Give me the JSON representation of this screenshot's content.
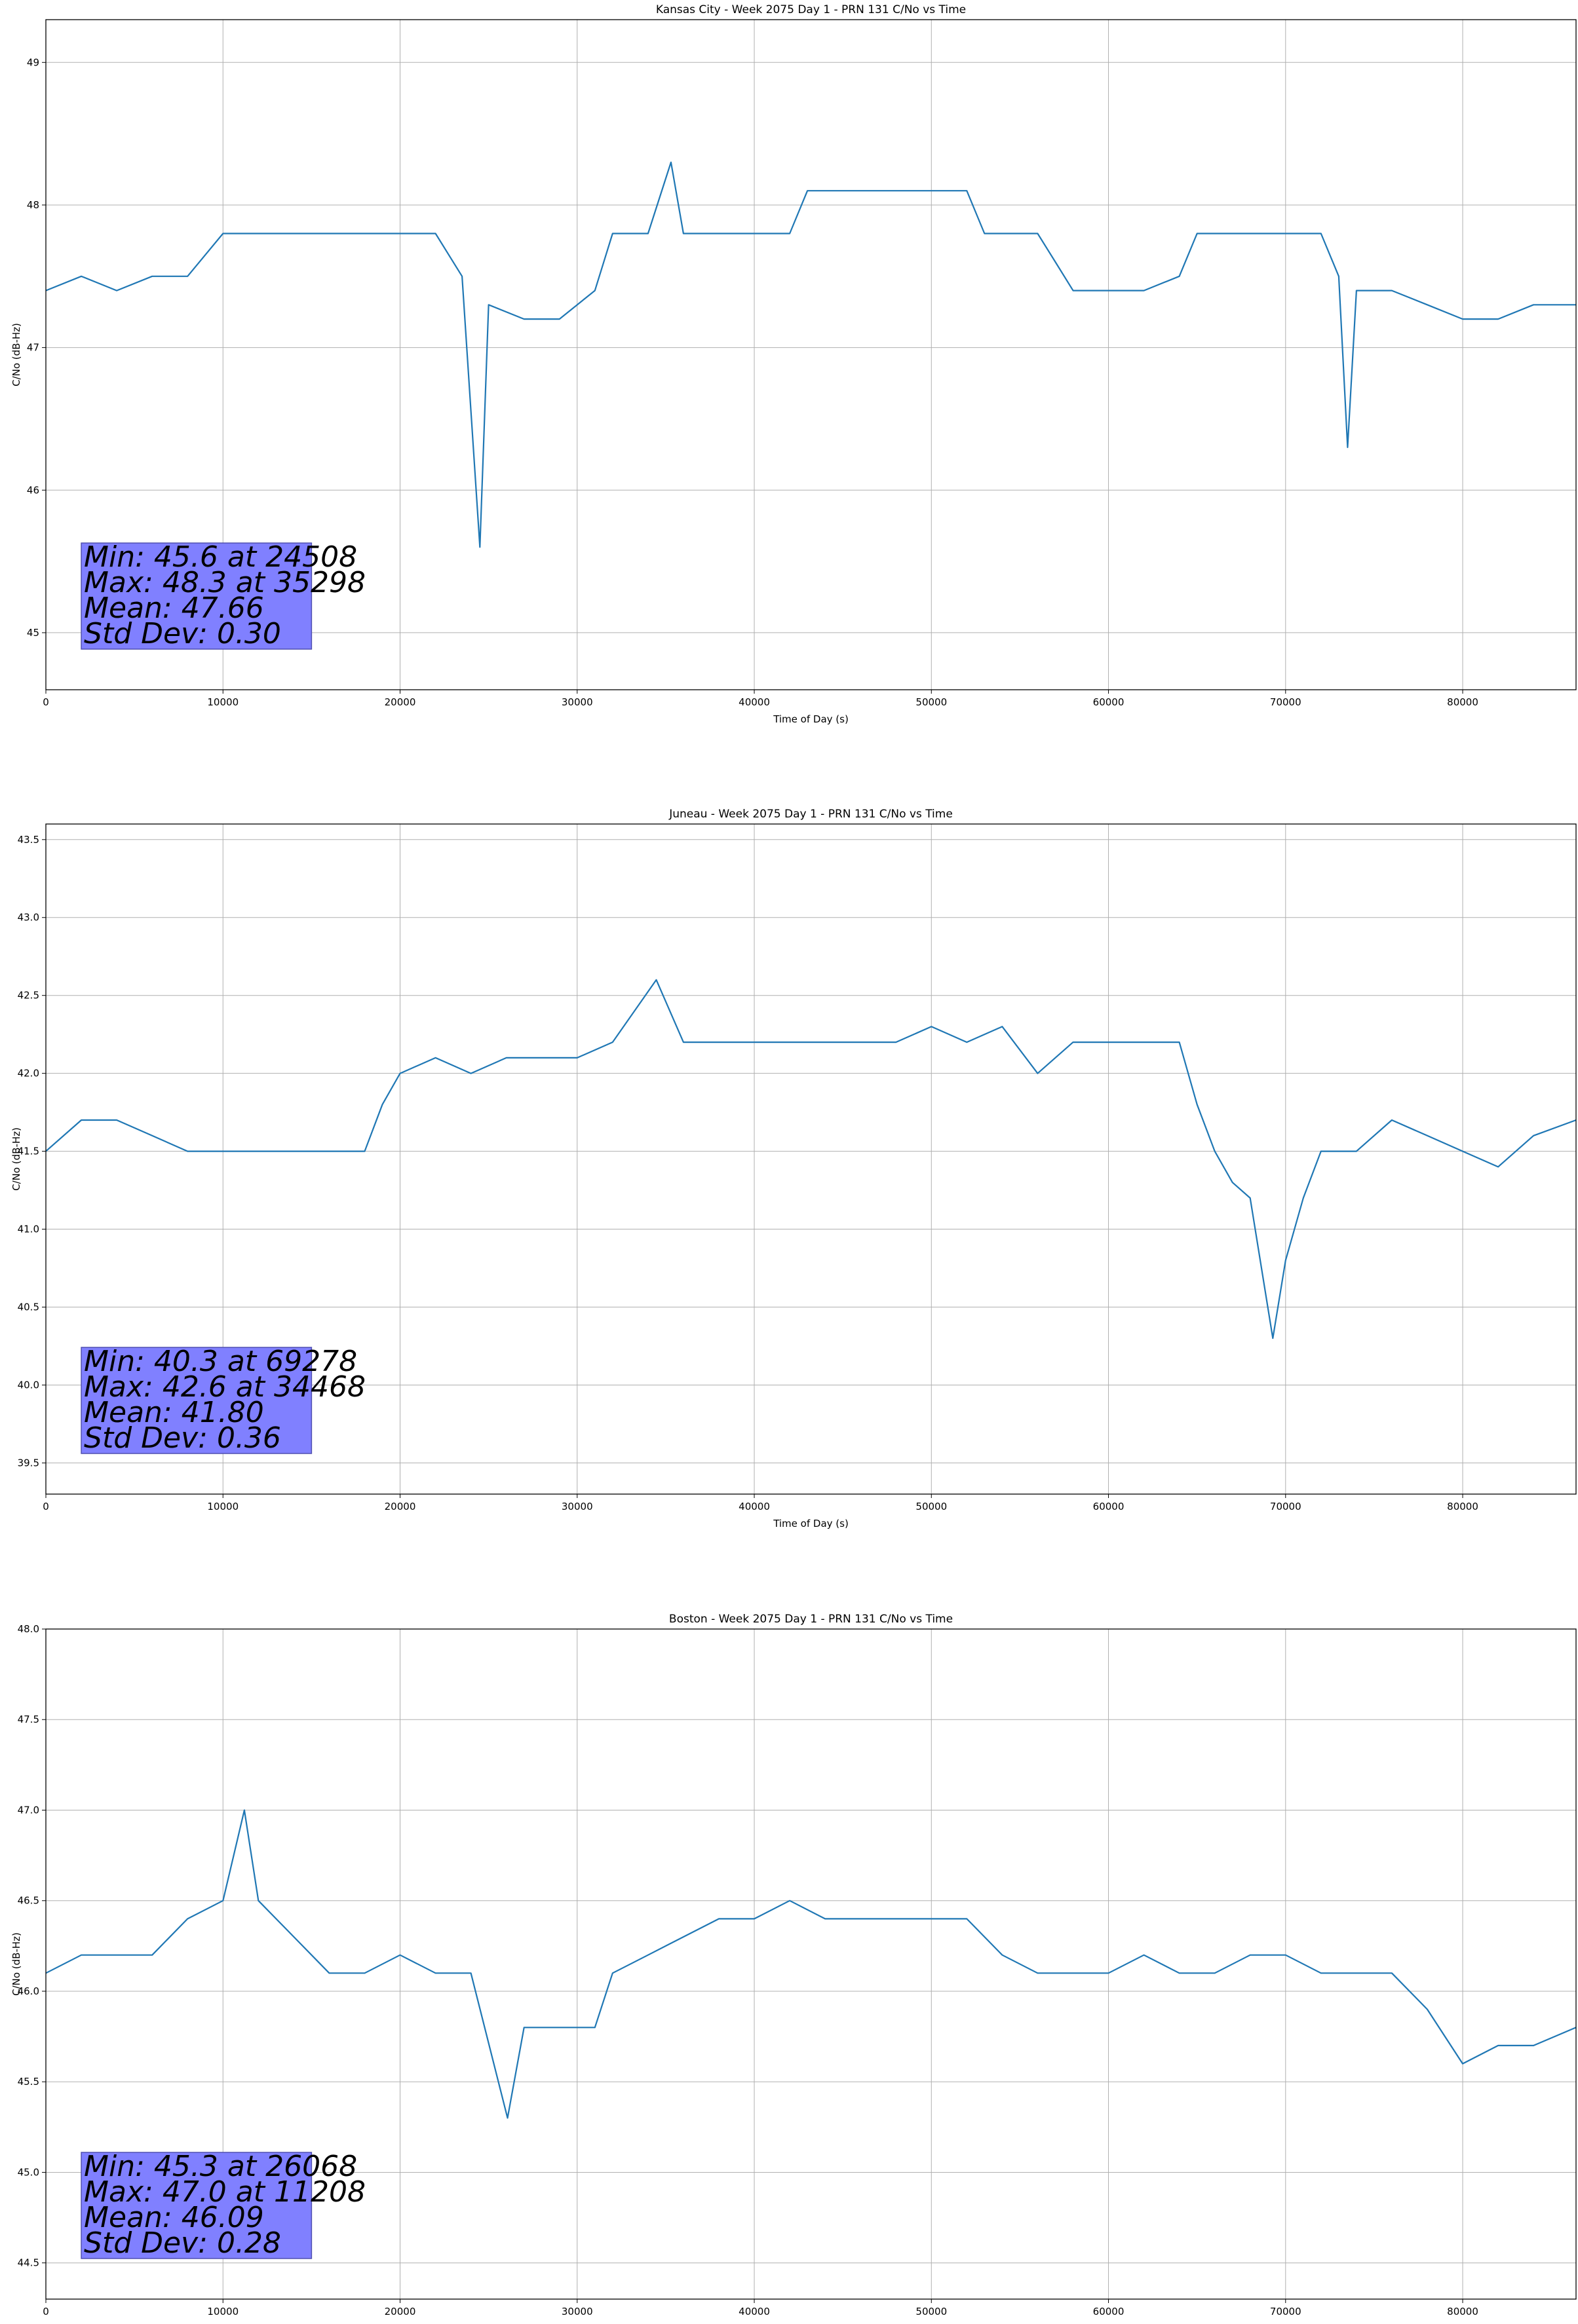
{
  "colors": {
    "series": "#1f77b4",
    "grid": "#b0b0b0",
    "stats_box_fill": "#8080ff",
    "stats_box_edge": "#5050b0"
  },
  "chart_data": [
    {
      "type": "line",
      "title": "Kansas City - Week 2075 Day 1 - PRN 131 C/No vs Time",
      "xlabel": "Time of Day (s)",
      "ylabel": "C/No (dB-Hz)",
      "xlim": [
        0,
        86400
      ],
      "ylim": [
        44.6,
        49.3
      ],
      "xticks": [
        0,
        10000,
        20000,
        30000,
        40000,
        50000,
        60000,
        70000,
        80000
      ],
      "yticks": [
        45,
        46,
        47,
        48,
        49
      ],
      "grid": true,
      "series": [
        {
          "x": [
            0,
            2000,
            4000,
            6000,
            8000,
            10000,
            12000,
            14000,
            16000,
            18000,
            20000,
            22000,
            23500,
            24508,
            25000,
            27000,
            29000,
            31000,
            32000,
            34000,
            35298,
            36000,
            38000,
            40000,
            42000,
            43000,
            44000,
            46000,
            48000,
            50000,
            52000,
            53000,
            54000,
            56000,
            57000,
            58000,
            60000,
            62000,
            64000,
            65000,
            66000,
            68000,
            70000,
            72000,
            73000,
            73500,
            74000,
            76000,
            78000,
            80000,
            82000,
            84000,
            86400
          ],
          "y": [
            47.4,
            47.5,
            47.4,
            47.5,
            47.5,
            47.8,
            47.8,
            47.8,
            47.8,
            47.8,
            47.8,
            47.8,
            47.5,
            45.6,
            47.3,
            47.2,
            47.2,
            47.4,
            47.8,
            47.8,
            48.3,
            47.8,
            47.8,
            47.8,
            47.8,
            48.1,
            48.1,
            48.1,
            48.1,
            48.1,
            48.1,
            47.8,
            47.8,
            47.8,
            47.6,
            47.4,
            47.4,
            47.4,
            47.5,
            47.8,
            47.8,
            47.8,
            47.8,
            47.8,
            47.5,
            46.3,
            47.4,
            47.4,
            47.3,
            47.2,
            47.2,
            47.3,
            47.3
          ]
        }
      ],
      "stats": [
        "Min: 45.6 at 24508",
        "Max: 48.3 at 35298",
        "Mean: 47.66",
        "Std Dev: 0.30"
      ]
    },
    {
      "type": "line",
      "title": "Juneau - Week 2075 Day 1 - PRN 131 C/No vs Time",
      "xlabel": "Time of Day (s)",
      "ylabel": "C/No (dB-Hz)",
      "xlim": [
        0,
        86400
      ],
      "ylim": [
        39.3,
        43.6
      ],
      "xticks": [
        0,
        10000,
        20000,
        30000,
        40000,
        50000,
        60000,
        70000,
        80000
      ],
      "yticks": [
        39.5,
        40.0,
        40.5,
        41.0,
        41.5,
        42.0,
        42.5,
        43.0,
        43.5
      ],
      "grid": true,
      "series": [
        {
          "x": [
            0,
            2000,
            4000,
            6000,
            8000,
            10000,
            12000,
            14000,
            16000,
            18000,
            19000,
            20000,
            22000,
            24000,
            26000,
            28000,
            30000,
            32000,
            34468,
            36000,
            38000,
            40000,
            42000,
            44000,
            46000,
            48000,
            50000,
            52000,
            54000,
            56000,
            58000,
            60000,
            62000,
            64000,
            65000,
            66000,
            67000,
            68000,
            69278,
            70000,
            71000,
            72000,
            74000,
            76000,
            78000,
            80000,
            82000,
            84000,
            86400
          ],
          "y": [
            41.5,
            41.7,
            41.7,
            41.6,
            41.5,
            41.5,
            41.5,
            41.5,
            41.5,
            41.5,
            41.8,
            42.0,
            42.1,
            42.0,
            42.1,
            42.1,
            42.1,
            42.2,
            42.6,
            42.2,
            42.2,
            42.2,
            42.2,
            42.2,
            42.2,
            42.2,
            42.3,
            42.2,
            42.3,
            42.0,
            42.2,
            42.2,
            42.2,
            42.2,
            41.8,
            41.5,
            41.3,
            41.2,
            40.3,
            40.8,
            41.2,
            41.5,
            41.5,
            41.7,
            41.6,
            41.5,
            41.4,
            41.6,
            41.7
          ]
        }
      ],
      "stats": [
        "Min: 40.3 at 69278",
        "Max: 42.6 at 34468",
        "Mean: 41.80",
        "Std Dev: 0.36"
      ]
    },
    {
      "type": "line",
      "title": "Boston - Week 2075 Day 1 - PRN 131 C/No vs Time",
      "xlabel": "Time of Day (s)",
      "ylabel": "C/No (dB-Hz)",
      "xlim": [
        0,
        86400
      ],
      "ylim": [
        44.3,
        48.0
      ],
      "xticks": [
        0,
        10000,
        20000,
        30000,
        40000,
        50000,
        60000,
        70000,
        80000
      ],
      "yticks": [
        44.5,
        45.0,
        45.5,
        46.0,
        46.5,
        47.0,
        47.5,
        48.0
      ],
      "grid": true,
      "series": [
        {
          "x": [
            0,
            2000,
            4000,
            6000,
            8000,
            10000,
            11208,
            12000,
            14000,
            16000,
            18000,
            20000,
            22000,
            24000,
            26068,
            27000,
            29000,
            31000,
            32000,
            34000,
            36000,
            38000,
            40000,
            42000,
            44000,
            46000,
            48000,
            50000,
            52000,
            54000,
            56000,
            58000,
            60000,
            62000,
            64000,
            66000,
            68000,
            70000,
            72000,
            74000,
            76000,
            78000,
            80000,
            82000,
            84000,
            86400
          ],
          "y": [
            46.1,
            46.2,
            46.2,
            46.2,
            46.4,
            46.5,
            47.0,
            46.5,
            46.3,
            46.1,
            46.1,
            46.2,
            46.1,
            46.1,
            45.3,
            45.8,
            45.8,
            45.8,
            46.1,
            46.2,
            46.3,
            46.4,
            46.4,
            46.5,
            46.4,
            46.4,
            46.4,
            46.4,
            46.4,
            46.2,
            46.1,
            46.1,
            46.1,
            46.2,
            46.1,
            46.1,
            46.2,
            46.2,
            46.1,
            46.1,
            46.1,
            45.9,
            45.6,
            45.7,
            45.7,
            45.8
          ]
        }
      ],
      "stats": [
        "Min: 45.3 at 26068",
        "Max: 47.0 at 11208",
        "Mean: 46.09",
        "Std Dev: 0.28"
      ]
    }
  ]
}
